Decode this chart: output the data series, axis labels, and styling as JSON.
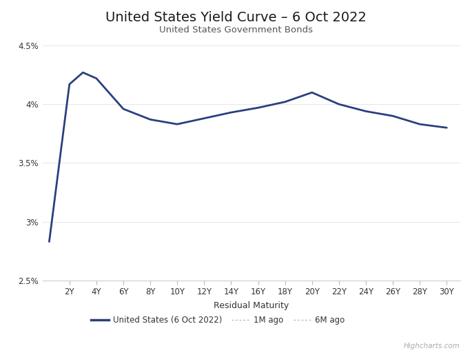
{
  "title": "United States Yield Curve – 6 Oct 2022",
  "subtitle": "United States Government Bonds",
  "xlabel": "Residual Maturity",
  "watermark": "Highcharts.com",
  "x_values": [
    0.5,
    2,
    3,
    4,
    6,
    8,
    10,
    12,
    14,
    16,
    18,
    20,
    22,
    24,
    26,
    28,
    30
  ],
  "y_values": [
    2.83,
    4.17,
    4.27,
    4.22,
    3.96,
    3.87,
    3.83,
    3.88,
    3.93,
    3.97,
    4.02,
    4.1,
    4.0,
    3.94,
    3.9,
    3.83,
    3.8
  ],
  "line_color": "#2a3f7e",
  "line_width": 2.0,
  "background_color": "#ffffff",
  "grid_color": "#e6e6e6",
  "ylim": [
    2.5,
    4.6
  ],
  "ytick_labels": [
    "2.5%",
    "3%",
    "3.5%",
    "4%",
    "4.5%"
  ],
  "ytick_values": [
    2.5,
    3.0,
    3.5,
    4.0,
    4.5
  ],
  "xlim": [
    0,
    31
  ],
  "xtick_values": [
    2,
    4,
    6,
    8,
    10,
    12,
    14,
    16,
    18,
    20,
    22,
    24,
    26,
    28,
    30
  ],
  "xtick_labels": [
    "2Y",
    "4Y",
    "6Y",
    "8Y",
    "10Y",
    "12Y",
    "14Y",
    "16Y",
    "18Y",
    "20Y",
    "22Y",
    "24Y",
    "26Y",
    "28Y",
    "30Y"
  ],
  "legend_us_label": "United States (6 Oct 2022)",
  "legend_1m_label": "1M ago",
  "legend_6m_label": "6M ago",
  "legend_us_color": "#2a3f7e",
  "legend_1m_color": "#bbbbbb",
  "legend_6m_color": "#bbbbbb",
  "title_fontsize": 14,
  "subtitle_fontsize": 9.5,
  "tick_fontsize": 8.5,
  "xlabel_fontsize": 9
}
